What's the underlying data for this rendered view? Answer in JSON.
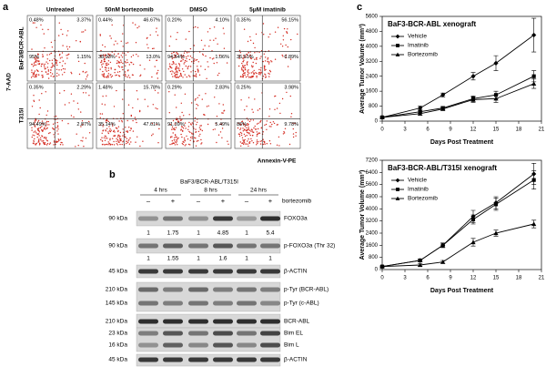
{
  "panel_labels": [
    "a",
    "b",
    "c"
  ],
  "flow": {
    "y_label": "7-AAD",
    "x_label": "Annexin-V-PE",
    "columns": [
      "Untreated",
      "50nM bortezomib",
      "DMSO",
      "5μM imatinib"
    ],
    "rows": [
      {
        "label": "BaF3/BCR-ABL",
        "plots": [
          [
            "0.48%",
            "3.37%",
            "95%",
            "1.15%"
          ],
          [
            "0.44%",
            "46.67%",
            "38.93%",
            "13.0%"
          ],
          [
            "0.20%",
            "4.10%",
            "94.64%",
            "1.06%"
          ],
          [
            "0.35%",
            "56.15%",
            "36.61%",
            "6.89%"
          ]
        ]
      },
      {
        "label": "T315I",
        "plots": [
          [
            "0.35%",
            "2.29%",
            "94.49%",
            "2.87%"
          ],
          [
            "1.48%",
            "15.78%",
            "35.14%",
            "47.61%"
          ],
          [
            "0.29%",
            "2.83%",
            "91.39%",
            "5.49%"
          ],
          [
            "0.25%",
            "3.98%",
            "86%",
            "9.78%"
          ]
        ]
      }
    ]
  },
  "blot": {
    "title": "BaF3/BCR-ABL/T315I",
    "times": [
      "4 hrs",
      "8 hrs",
      "24 hrs"
    ],
    "lanes": [
      "–",
      "+",
      "–",
      "+",
      "–",
      "+"
    ],
    "treatment": "bortezomib",
    "rows": [
      {
        "kda": "90 kDa",
        "label": "FOXO3a"
      },
      {
        "quant": [
          1,
          1.75,
          1,
          4.85,
          1,
          5.4
        ]
      },
      {
        "kda": "90 kDa",
        "label": "p-FOXO3a (Thr 32)"
      },
      {
        "quant": [
          1,
          1.55,
          1,
          1.6,
          1,
          1
        ]
      },
      {
        "kda": "45 kDa",
        "label": "β-ACTIN"
      },
      {
        "kda": "210 kDa",
        "label": "p-Tyr (BCR-ABL)"
      },
      {
        "kda": "145 kDa",
        "label": "p-Tyr (c-ABL)"
      },
      {
        "kda": "210 kDa",
        "label": "BCR-ABL"
      },
      {
        "kda": "23 kDa",
        "label": "Bim EL"
      },
      {
        "kda": "16 kDa",
        "label": "Bim L"
      },
      {
        "kda": "45 kDa",
        "label": "β-ACTIN"
      }
    ]
  },
  "chart_data": [
    {
      "type": "line",
      "title": "BaF3-BCR-ABL xenograft",
      "x_label": "Days Post Treatment",
      "y_label": "Average Tumor Volume (mm³)",
      "x": [
        0,
        5,
        8,
        12,
        15,
        20
      ],
      "xlim": [
        0,
        21
      ],
      "xticks": [
        0,
        3,
        6,
        9,
        12,
        15,
        18,
        21
      ],
      "ylim": [
        0,
        5600
      ],
      "yticks": [
        0,
        800,
        1600,
        2400,
        3200,
        4000,
        4800,
        5600
      ],
      "legend": "upper-left",
      "series": [
        {
          "name": "Vehicle",
          "color": "#000000",
          "marker": "diamond",
          "values": [
            200,
            700,
            1400,
            2400,
            3100,
            4600
          ],
          "errors": [
            50,
            100,
            100,
            200,
            400,
            900
          ]
        },
        {
          "name": "Imatinib",
          "color": "#000000",
          "marker": "square",
          "values": [
            200,
            500,
            700,
            1200,
            1400,
            2400
          ],
          "errors": [
            50,
            80,
            80,
            150,
            200,
            300
          ]
        },
        {
          "name": "Bortezomib",
          "color": "#000000",
          "marker": "triangle",
          "values": [
            200,
            400,
            650,
            1150,
            1200,
            2000
          ],
          "errors": [
            50,
            80,
            80,
            150,
            200,
            250
          ]
        }
      ]
    },
    {
      "type": "line",
      "title": "BaF3-BCR-ABL/T315I xenograft",
      "x_label": "Days Post Treatment",
      "y_label": "Average Tumor Volume (mm³)",
      "x": [
        0,
        5,
        8,
        12,
        15,
        20
      ],
      "xlim": [
        0,
        21
      ],
      "xticks": [
        0,
        3,
        6,
        9,
        12,
        15,
        18,
        21
      ],
      "ylim": [
        0,
        7200
      ],
      "yticks": [
        0,
        800,
        1600,
        2400,
        3200,
        4000,
        4800,
        5600,
        6400,
        7200
      ],
      "legend": "upper-left",
      "series": [
        {
          "name": "Vehicle",
          "color": "#000000",
          "marker": "diamond",
          "values": [
            200,
            600,
            1600,
            3500,
            4400,
            6300
          ],
          "errors": [
            50,
            100,
            150,
            400,
            400,
            700
          ]
        },
        {
          "name": "Imatinib",
          "color": "#000000",
          "marker": "square",
          "values": [
            200,
            600,
            1600,
            3300,
            4300,
            5900
          ],
          "errors": [
            50,
            100,
            150,
            300,
            400,
            600
          ]
        },
        {
          "name": "Bortezomib",
          "color": "#000000",
          "marker": "triangle",
          "values": [
            200,
            300,
            500,
            1800,
            2400,
            3000
          ],
          "errors": [
            50,
            80,
            100,
            250,
            200,
            250
          ]
        }
      ]
    }
  ]
}
